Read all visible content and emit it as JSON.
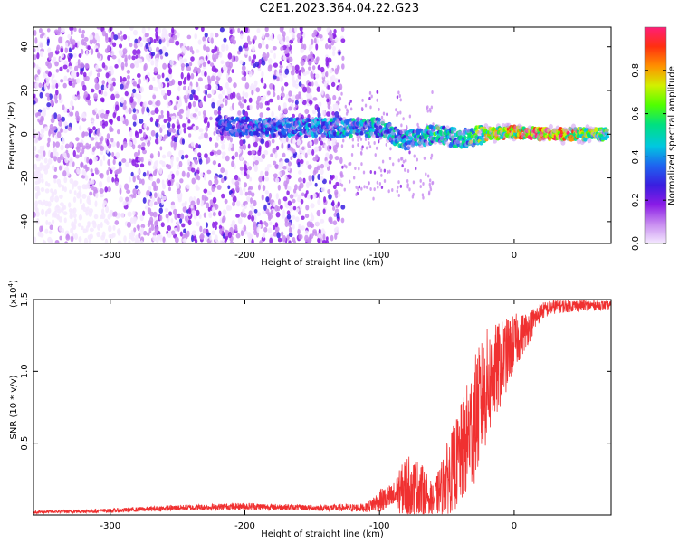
{
  "title": "C2E1.2023.364.04.22.G23",
  "chart_data": [
    {
      "type": "heatmap",
      "xlabel": "Height of straight line (km)",
      "ylabel": "Frequency (Hz)",
      "xlim": [
        -357,
        72
      ],
      "ylim": [
        -50,
        49
      ],
      "x_ticks": [
        -300,
        -200,
        -100,
        0
      ],
      "x_tick_labels": [
        "-300",
        "-200",
        "-100",
        "0"
      ],
      "y_ticks": [
        40,
        20,
        0,
        -20,
        -40
      ],
      "y_tick_labels": [
        "40",
        "20",
        "0",
        "-20",
        "-40"
      ],
      "colorbar": {
        "label": "Normalized spectral amplitude",
        "range": [
          0,
          1
        ],
        "ticks": [
          0.0,
          0.2,
          0.4,
          0.6,
          0.8
        ],
        "tick_labels": [
          "0.0",
          "0.2",
          "0.4",
          "0.6",
          "0.8"
        ],
        "colors": [
          "#f4e8ff",
          "#c88cf0",
          "#8a1be6",
          "#3a1ee0",
          "#1e64f0",
          "#00c8e0",
          "#00e080",
          "#50ff00",
          "#d2f000",
          "#ff9000",
          "#ff3010",
          "#ff1e78"
        ]
      },
      "band": [
        {
          "x": -220,
          "freq": 4,
          "amp": 0.35
        },
        {
          "x": -180,
          "freq": 3,
          "amp": 0.4
        },
        {
          "x": -130,
          "freq": 3,
          "amp": 0.45
        },
        {
          "x": -100,
          "freq": 3,
          "amp": 0.5
        },
        {
          "x": -80,
          "freq": -3,
          "amp": 0.5
        },
        {
          "x": -60,
          "freq": 0,
          "amp": 0.55
        },
        {
          "x": -40,
          "freq": -2,
          "amp": 0.5
        },
        {
          "x": -20,
          "freq": 0,
          "amp": 0.75
        },
        {
          "x": 0,
          "freq": 1,
          "amp": 0.85
        },
        {
          "x": 20,
          "freq": 0,
          "amp": 0.95
        },
        {
          "x": 40,
          "freq": 0,
          "amp": 0.9
        },
        {
          "x": 70,
          "freq": 0,
          "amp": 0.55
        }
      ],
      "grid": false,
      "legend": "colorbar-right"
    },
    {
      "type": "line",
      "xlabel": "Height of straight line (km)",
      "ylabel": "SNR (10 * v/v)",
      "y_multiplier": "(x10",
      "y_multiplier_exp": "4",
      "y_multiplier_close": ")",
      "xlim": [
        -357,
        72
      ],
      "ylim": [
        0,
        1.5
      ],
      "x_ticks": [
        -300,
        -200,
        -100,
        0
      ],
      "x_tick_labels": [
        "-300",
        "-200",
        "-100",
        "0"
      ],
      "y_ticks": [
        0.5,
        1.0,
        1.5
      ],
      "y_tick_labels": [
        "0.5",
        "1.0",
        "1.5"
      ],
      "line_color": "#f03030",
      "envelope": {
        "x": [
          -357,
          -300,
          -250,
          -200,
          -150,
          -110,
          -100,
          -90,
          -80,
          -70,
          -60,
          -50,
          -40,
          -30,
          -20,
          -10,
          0,
          10,
          20,
          30,
          50,
          72
        ],
        "mean": [
          0.02,
          0.03,
          0.05,
          0.06,
          0.05,
          0.05,
          0.1,
          0.12,
          0.2,
          0.18,
          0.1,
          0.25,
          0.4,
          0.65,
          0.9,
          1.05,
          1.2,
          1.3,
          1.42,
          1.45,
          1.46,
          1.46
        ],
        "spread": [
          0.01,
          0.015,
          0.02,
          0.025,
          0.02,
          0.03,
          0.08,
          0.1,
          0.22,
          0.2,
          0.1,
          0.25,
          0.35,
          0.45,
          0.4,
          0.3,
          0.2,
          0.12,
          0.06,
          0.05,
          0.04,
          0.03
        ]
      },
      "grid": false
    }
  ]
}
